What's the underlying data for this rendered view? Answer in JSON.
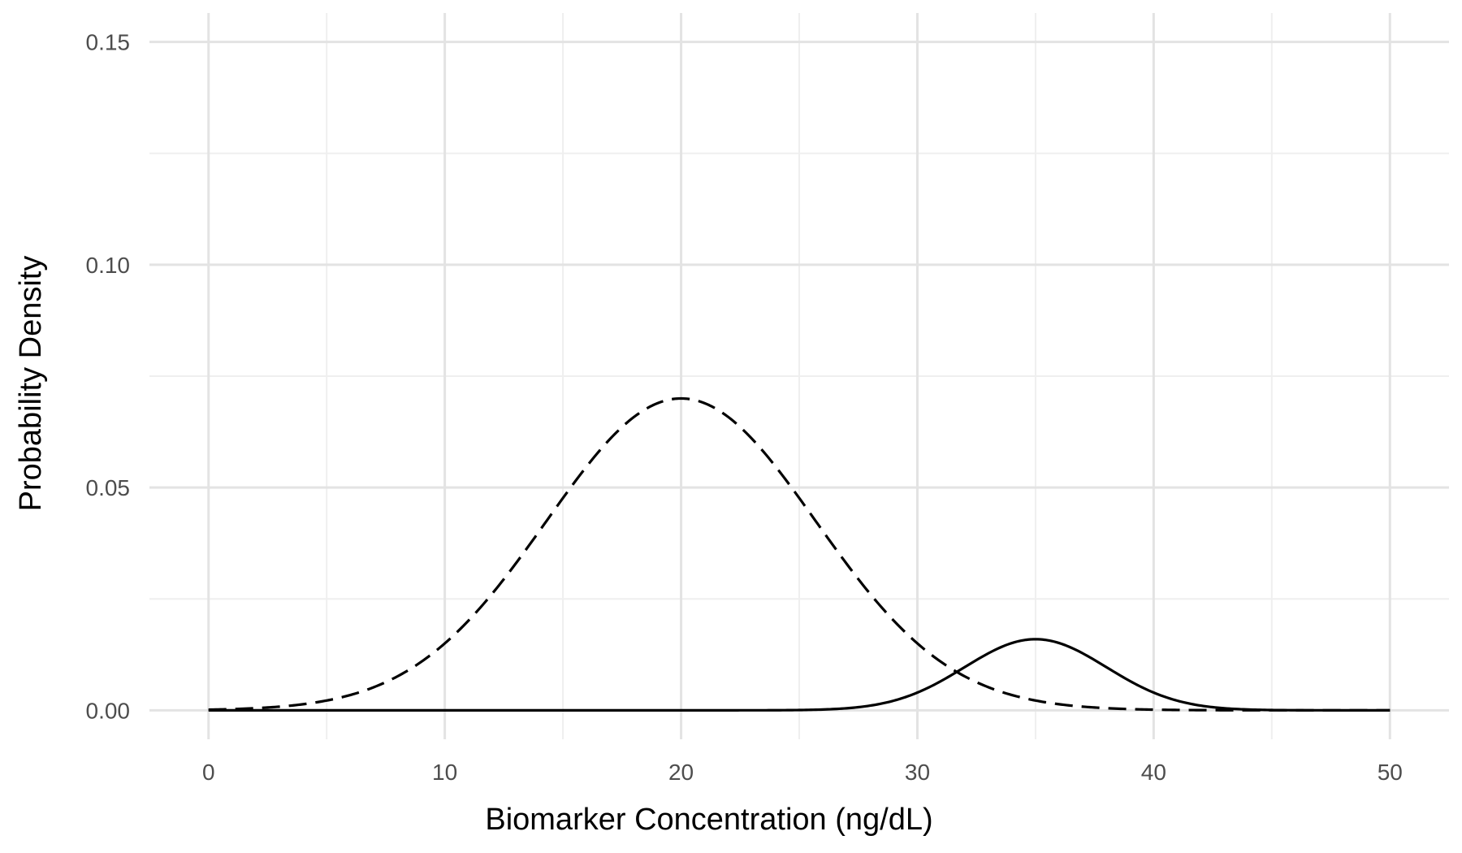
{
  "chart_data": {
    "type": "line",
    "title": "",
    "xlabel": "Biomarker Concentration (ng/dL)",
    "ylabel": "Probability Density",
    "xlim": [
      -2.5,
      52.5
    ],
    "ylim": [
      -0.0065,
      0.1565
    ],
    "x_ticks": [
      0,
      10,
      20,
      30,
      40,
      50
    ],
    "x_tick_labels": [
      "0",
      "10",
      "20",
      "30",
      "40",
      "50"
    ],
    "y_ticks": [
      0,
      0.05,
      0.1,
      0.15
    ],
    "y_tick_labels": [
      "0.00",
      "0.05",
      "0.10",
      "0.15"
    ],
    "grid": true,
    "legend": "none",
    "series": [
      {
        "line_style": "dashed",
        "color": "#000000",
        "distribution": "normal",
        "mean": 20,
        "sd": 5.7,
        "weight": 1.0,
        "peak_value": 0.07
      },
      {
        "line_style": "solid",
        "color": "#000000",
        "distribution": "normal",
        "mean": 35,
        "sd": 3.0,
        "weight": 0.12,
        "peak_value": 0.016
      }
    ],
    "x_range": [
      0,
      50
    ]
  }
}
